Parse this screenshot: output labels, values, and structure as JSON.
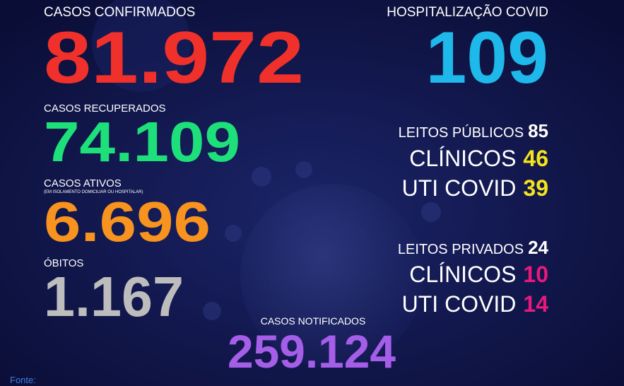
{
  "confirmed": {
    "label": "CASOS CONFIRMADOS",
    "value": "81.972"
  },
  "recovered": {
    "label": "CASOS RECUPERADOS",
    "value": "74.109"
  },
  "active": {
    "label": "CASOS ATIVOS",
    "note": "(EM ISOLAMENTO DOMICILIAR OU HOSPITALAR)",
    "value": "6.696"
  },
  "deaths": {
    "label": "ÓBITOS",
    "value": "1.167"
  },
  "notified": {
    "label": "CASOS NOTIFICADOS",
    "value": "259.124"
  },
  "hospitalization": {
    "label": "HOSPITALIZAÇÃO COVID",
    "value": "109"
  },
  "public_beds": {
    "label": "LEITOS PÚBLICOS",
    "value": "85",
    "rows": [
      {
        "label": "CLÍNICOS",
        "value": "46"
      },
      {
        "label": "UTI COVID",
        "value": "39"
      }
    ]
  },
  "private_beds": {
    "label": "LEITOS PRIVADOS",
    "value": "24",
    "rows": [
      {
        "label": "CLÍNICOS",
        "value": "10"
      },
      {
        "label": "UTI COVID",
        "value": "14"
      }
    ]
  },
  "footer": {
    "source": "Fonte:"
  }
}
